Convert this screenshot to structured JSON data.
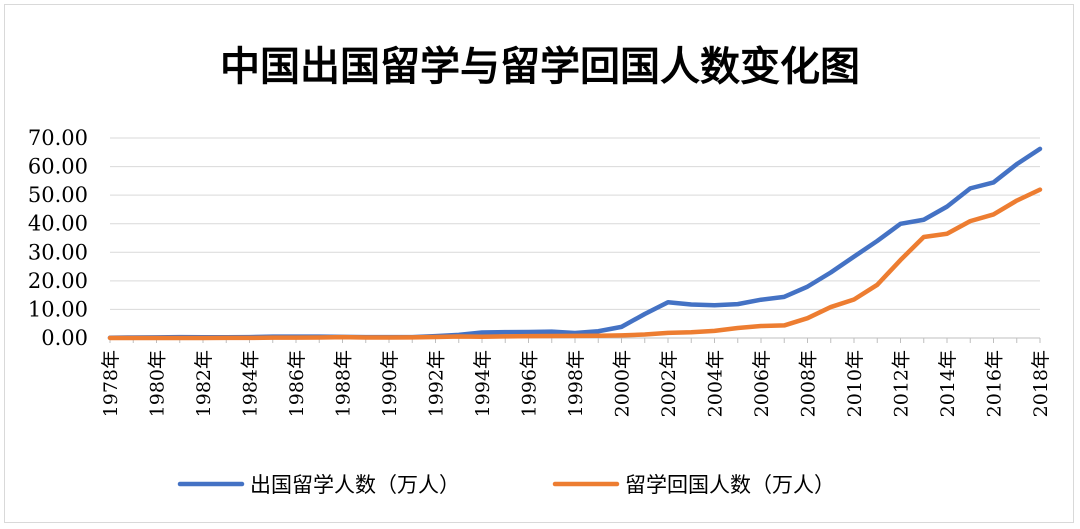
{
  "chart_data": {
    "type": "line",
    "title": "中国出国留学与留学回国人数变化图",
    "xlabel": "",
    "ylabel": "",
    "ylim": [
      0,
      70
    ],
    "y_ticks": [
      "0.00",
      "10.00",
      "20.00",
      "30.00",
      "40.00",
      "50.00",
      "60.00",
      "70.00"
    ],
    "x": [
      "1978年",
      "1979年",
      "1980年",
      "1981年",
      "1982年",
      "1983年",
      "1984年",
      "1985年",
      "1986年",
      "1987年",
      "1988年",
      "1989年",
      "1990年",
      "1991年",
      "1992年",
      "1993年",
      "1994年",
      "1995年",
      "1996年",
      "1997年",
      "1998年",
      "1999年",
      "2000年",
      "2001年",
      "2002年",
      "2003年",
      "2004年",
      "2005年",
      "2006年",
      "2007年",
      "2008年",
      "2009年",
      "2010年",
      "2011年",
      "2012年",
      "2013年",
      "2014年",
      "2015年",
      "2016年",
      "2017年",
      "2018年"
    ],
    "x_tick_labels": [
      "1978年",
      "1980年",
      "1982年",
      "1984年",
      "1986年",
      "1988年",
      "1990年",
      "1992年",
      "1994年",
      "1996年",
      "1998年",
      "2000年",
      "2002年",
      "2004年",
      "2006年",
      "2008年",
      "2010年",
      "2012年",
      "2014年",
      "2016年",
      "2018年"
    ],
    "grid": true,
    "legend_position": "bottom",
    "series": [
      {
        "name": "出国留学人数（万人）",
        "color": "#4472C4",
        "values": [
          0.09,
          0.18,
          0.21,
          0.29,
          0.26,
          0.25,
          0.31,
          0.49,
          0.47,
          0.47,
          0.38,
          0.32,
          0.3,
          0.29,
          0.65,
          1.08,
          1.91,
          2.04,
          2.09,
          2.24,
          1.76,
          2.37,
          3.9,
          8.4,
          12.52,
          11.73,
          11.47,
          11.85,
          13.4,
          14.4,
          17.98,
          22.93,
          28.47,
          33.97,
          39.96,
          41.39,
          45.98,
          52.37,
          54.45,
          60.84,
          66.21
        ]
      },
      {
        "name": "留学回国人数（万人）",
        "color": "#ED7D31",
        "values": [
          0.02,
          0.02,
          0.02,
          0.02,
          0.02,
          0.05,
          0.05,
          0.12,
          0.12,
          0.16,
          0.3,
          0.18,
          0.18,
          0.2,
          0.35,
          0.52,
          0.42,
          0.57,
          0.65,
          0.71,
          0.74,
          0.77,
          0.91,
          1.22,
          1.79,
          2.01,
          2.51,
          3.5,
          4.2,
          4.4,
          6.93,
          10.83,
          13.48,
          18.62,
          27.29,
          35.35,
          36.48,
          40.91,
          43.25,
          48.09,
          51.94
        ]
      }
    ]
  }
}
